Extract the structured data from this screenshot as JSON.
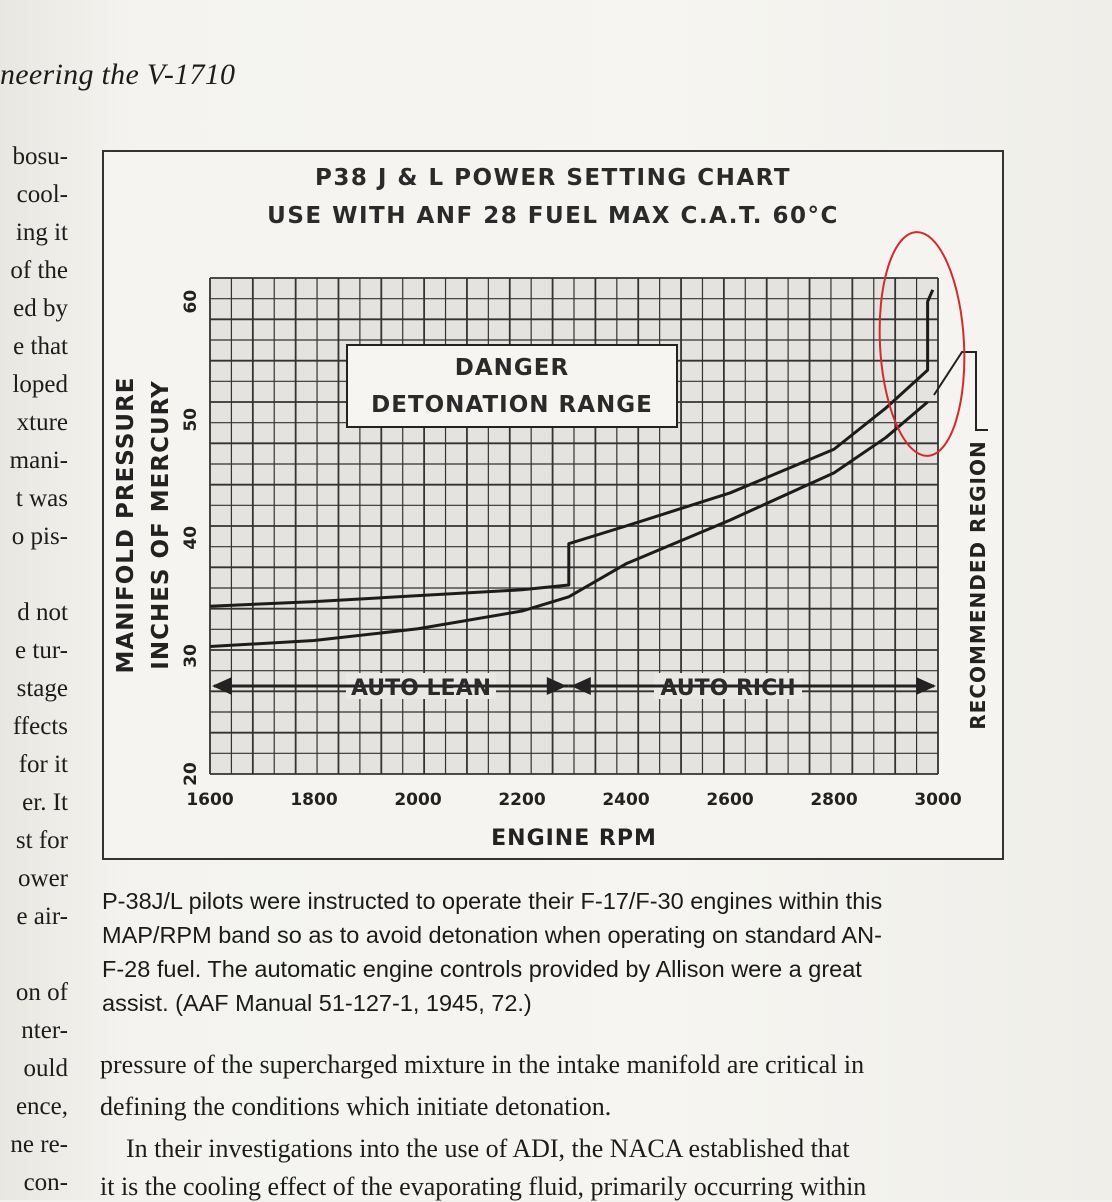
{
  "running_head": "neering the V-1710",
  "left_column_lines": [
    "bosu-",
    "cool-",
    "ing it",
    "of the",
    "ed by",
    "e that",
    "loped",
    "xture",
    "mani-",
    "t was",
    "o pis-",
    "",
    "d not",
    "e tur-",
    "stage",
    "ffects",
    "for it",
    "er. It",
    "st for",
    "ower",
    "e air-",
    "",
    "on of",
    "nter-",
    "ould",
    "ence,",
    "ne re-",
    "con-"
  ],
  "chart_data": {
    "type": "line",
    "title": "P38 J & L POWER SETTING CHART",
    "subtitle": "USE WITH ANF 28 FUEL MAX C.A.T. 60°C",
    "xlabel": "ENGINE RPM",
    "ylabel": "MANIFOLD PRESSURE",
    "ylabel2": "INCHES OF MERCURY",
    "xlim": [
      1600,
      3000
    ],
    "ylim": [
      20,
      62
    ],
    "x_ticks": [
      "1600",
      "1800",
      "2000",
      "2200",
      "2400",
      "2600",
      "2800",
      "3000"
    ],
    "y_ticks": [
      "20",
      "30",
      "40",
      "50",
      "60"
    ],
    "grid": true,
    "series": [
      {
        "x": [
          1600,
          1800,
          2000,
          2200,
          2290,
          2290,
          2400,
          2600,
          2800,
          2900,
          2980,
          2980,
          2990
        ],
        "values": [
          34.2,
          34.6,
          35.1,
          35.6,
          36.0,
          39.5,
          41.0,
          43.8,
          47.5,
          51.0,
          54.2,
          60.0,
          61.0
        ]
      },
      {
        "x": [
          1600,
          1800,
          2000,
          2200,
          2290,
          2400,
          2600,
          2800,
          2900,
          2980
        ],
        "values": [
          30.8,
          31.3,
          32.3,
          33.8,
          35.0,
          37.8,
          41.5,
          45.5,
          48.5,
          51.5
        ]
      }
    ],
    "region_labels": [
      "DANGER",
      "DETONATION RANGE"
    ],
    "arrow_labels": [
      "AUTO LEAN",
      "AUTO RICH"
    ],
    "side_label": "RECOMMENDED REGION"
  },
  "caption_lines": [
    "P-38J/L pilots were instructed to operate their F-17/F-30 engines within this",
    "MAP/RPM band so as to avoid detonation when operating on standard AN-",
    "F-28 fuel. The automatic engine controls provided by Allison were a great",
    "assist. (AAF Manual 51-127-1, 1945, 72.)"
  ],
  "body_lines": [
    "pressure of the supercharged mixture in the intake manifold are critical in",
    "defining the conditions which initiate detonation.",
    "    In their investigations into the use of ADI, the NACA established that",
    "it is the cooling effect of the evaporating fluid, primarily occurring within"
  ],
  "colors": {
    "annotation": "#d42a2a",
    "ink": "#1c1c1c"
  }
}
